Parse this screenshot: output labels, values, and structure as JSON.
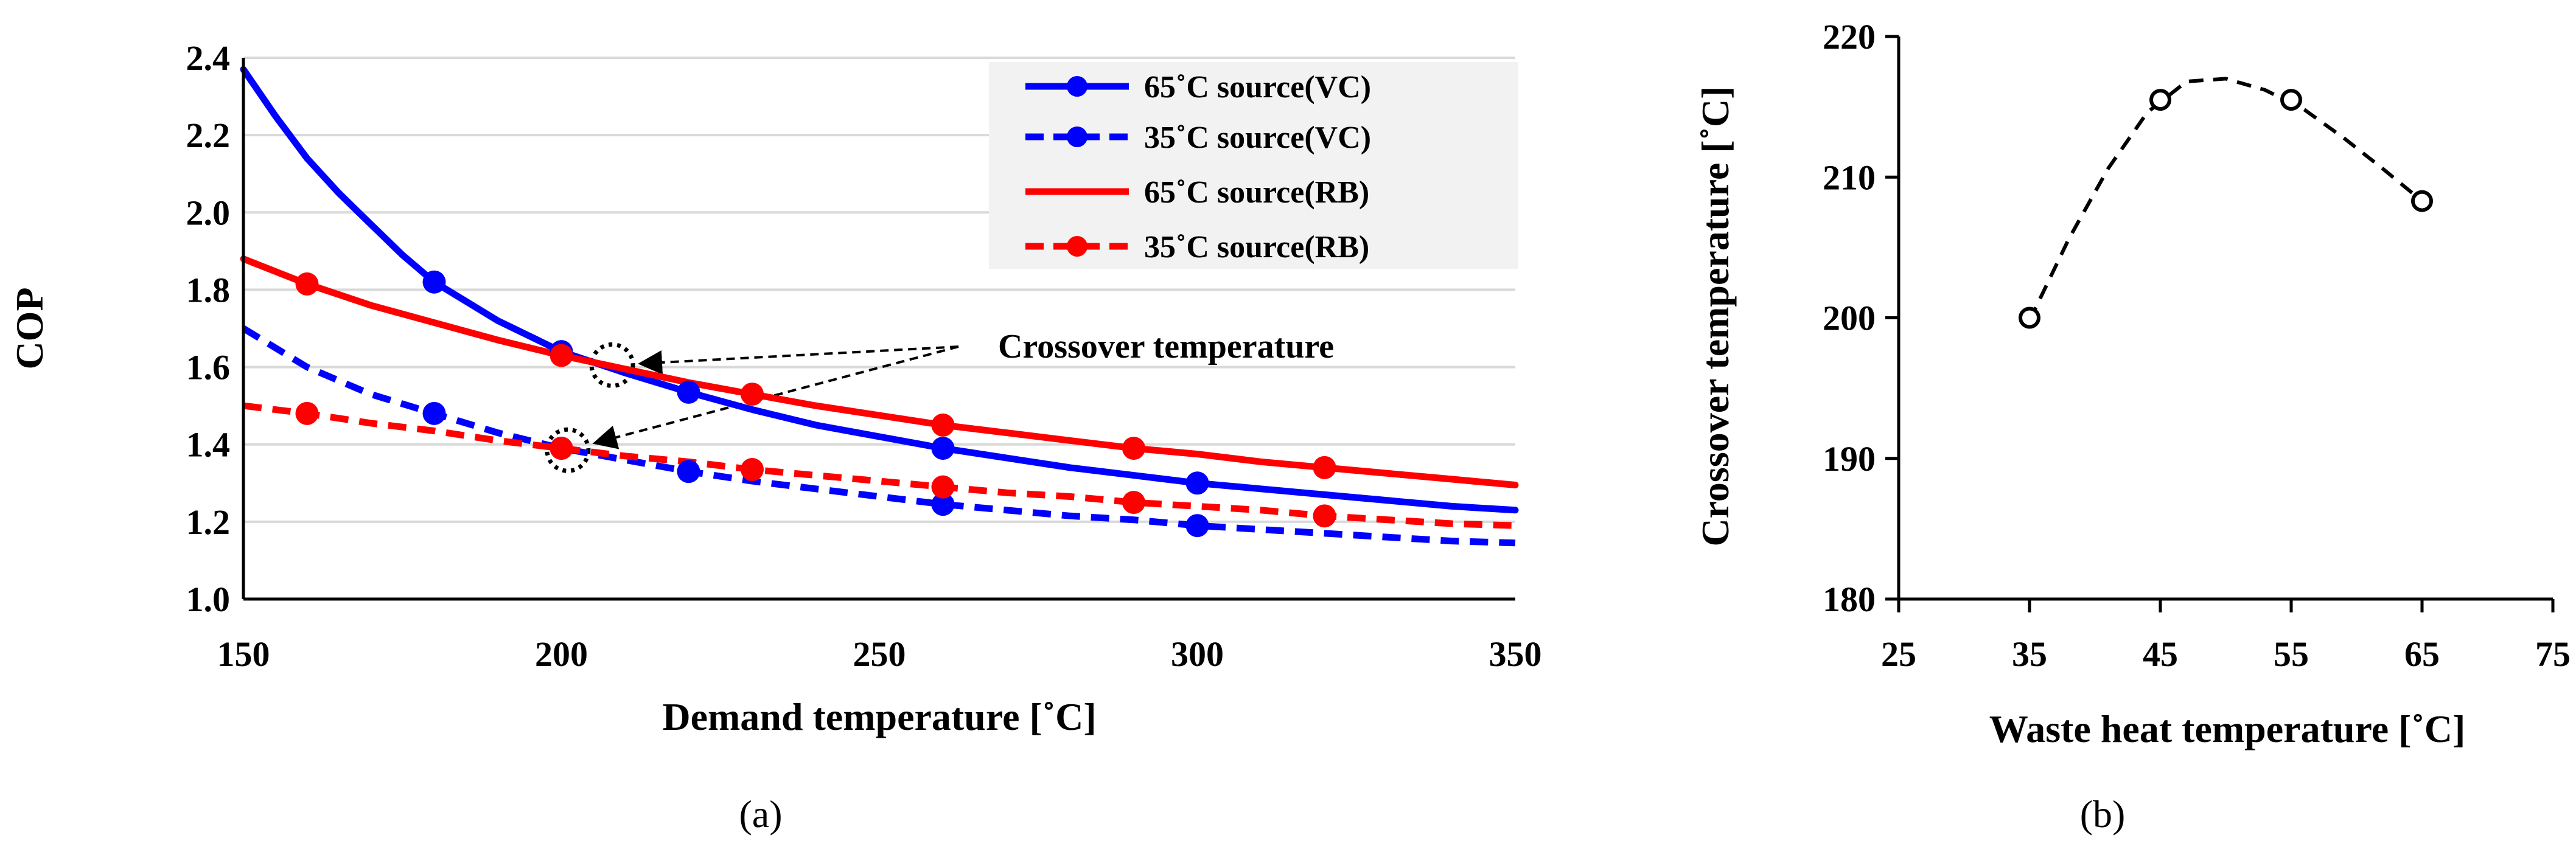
{
  "chart_data": [
    {
      "type": "line",
      "panel": "(a)",
      "caption": "(a)",
      "xlabel": "Demand temperature [˚C]",
      "ylabel": "COP",
      "xlim": [
        150,
        350
      ],
      "ylim": [
        1.0,
        2.4
      ],
      "x_ticks": [
        "150",
        "200",
        "250",
        "300",
        "350"
      ],
      "y_ticks": [
        "1.0",
        "1.2",
        "1.4",
        "1.6",
        "1.8",
        "2.0",
        "2.2",
        "2.4"
      ],
      "grid": "horizontal",
      "legend_position": "top-right",
      "series": [
        {
          "name": "65˚C source(VC)",
          "color": "#0000FF",
          "dash": "solid",
          "curve_x": [
            150,
            155,
            160,
            165,
            170,
            175,
            180,
            190,
            200,
            210,
            220,
            230,
            240,
            250,
            260,
            270,
            280,
            290,
            300,
            310,
            320,
            330,
            340,
            350
          ],
          "curve_y": [
            2.37,
            2.25,
            2.14,
            2.05,
            1.97,
            1.89,
            1.82,
            1.72,
            1.64,
            1.585,
            1.535,
            1.49,
            1.45,
            1.42,
            1.39,
            1.365,
            1.34,
            1.32,
            1.3,
            1.285,
            1.27,
            1.255,
            1.24,
            1.23
          ],
          "marker_x": [
            180,
            200,
            220,
            260,
            300
          ],
          "marker_y": [
            1.82,
            1.64,
            1.535,
            1.39,
            1.3
          ]
        },
        {
          "name": "35˚C source(VC)",
          "color": "#0000FF",
          "dash": "dashed",
          "curve_x": [
            150,
            160,
            170,
            180,
            190,
            200,
            210,
            220,
            230,
            240,
            250,
            260,
            270,
            280,
            290,
            300,
            310,
            320,
            330,
            340,
            350
          ],
          "curve_y": [
            1.7,
            1.6,
            1.53,
            1.48,
            1.43,
            1.39,
            1.36,
            1.33,
            1.305,
            1.285,
            1.265,
            1.245,
            1.23,
            1.215,
            1.205,
            1.19,
            1.18,
            1.17,
            1.16,
            1.15,
            1.145
          ],
          "marker_x": [
            180,
            200,
            220,
            260,
            300
          ],
          "marker_y": [
            1.48,
            1.39,
            1.33,
            1.245,
            1.19
          ]
        },
        {
          "name": "65˚C source(RB)",
          "color": "#FF0000",
          "dash": "solid",
          "curve_x": [
            150,
            160,
            170,
            180,
            190,
            200,
            210,
            220,
            230,
            240,
            250,
            260,
            270,
            280,
            290,
            300,
            310,
            320,
            330,
            340,
            350
          ],
          "curve_y": [
            1.88,
            1.815,
            1.76,
            1.715,
            1.67,
            1.63,
            1.595,
            1.56,
            1.53,
            1.5,
            1.475,
            1.45,
            1.43,
            1.41,
            1.39,
            1.375,
            1.355,
            1.34,
            1.325,
            1.31,
            1.295
          ],
          "marker_x": [
            160,
            200,
            230,
            260,
            290,
            320
          ],
          "marker_y": [
            1.815,
            1.63,
            1.53,
            1.45,
            1.39,
            1.34
          ]
        },
        {
          "name": "35˚C source(RB)",
          "color": "#FF0000",
          "dash": "dashed",
          "curve_x": [
            150,
            160,
            170,
            180,
            190,
            200,
            210,
            220,
            230,
            240,
            250,
            260,
            270,
            280,
            290,
            300,
            310,
            320,
            330,
            340,
            350
          ],
          "curve_y": [
            1.5,
            1.48,
            1.455,
            1.435,
            1.41,
            1.39,
            1.37,
            1.355,
            1.335,
            1.32,
            1.305,
            1.29,
            1.275,
            1.265,
            1.25,
            1.24,
            1.23,
            1.215,
            1.205,
            1.195,
            1.19
          ],
          "marker_x": [
            160,
            200,
            230,
            260,
            290,
            320
          ],
          "marker_y": [
            1.48,
            1.39,
            1.335,
            1.29,
            1.25,
            1.215
          ]
        }
      ],
      "annotations": [
        {
          "text": "Crossover temperature",
          "circles": [
            [
              208,
              1.605
            ],
            [
              201,
              1.385
            ]
          ]
        }
      ]
    },
    {
      "type": "scatter",
      "panel": "(b)",
      "caption": "(b)",
      "xlabel": "Waste heat temperature [˚C]",
      "ylabel": "Crossover temperature [˚C]",
      "xlim": [
        25,
        75
      ],
      "ylim": [
        180,
        220
      ],
      "x_ticks": [
        "25",
        "35",
        "45",
        "55",
        "65",
        "75"
      ],
      "y_ticks": [
        "180",
        "190",
        "200",
        "210",
        "220"
      ],
      "grid": "none",
      "series": [
        {
          "name": "Crossover temperature",
          "x": [
            35,
            45,
            55,
            65
          ],
          "y": [
            200,
            215.5,
            215.5,
            208.3
          ],
          "trend_x": [
            35,
            38,
            41,
            44,
            47,
            50,
            53,
            56,
            59,
            62,
            65
          ],
          "trend_y": [
            199.8,
            205.6,
            210.6,
            214.6,
            216.8,
            217.0,
            216.2,
            214.8,
            212.8,
            210.6,
            208.3
          ]
        }
      ]
    }
  ]
}
